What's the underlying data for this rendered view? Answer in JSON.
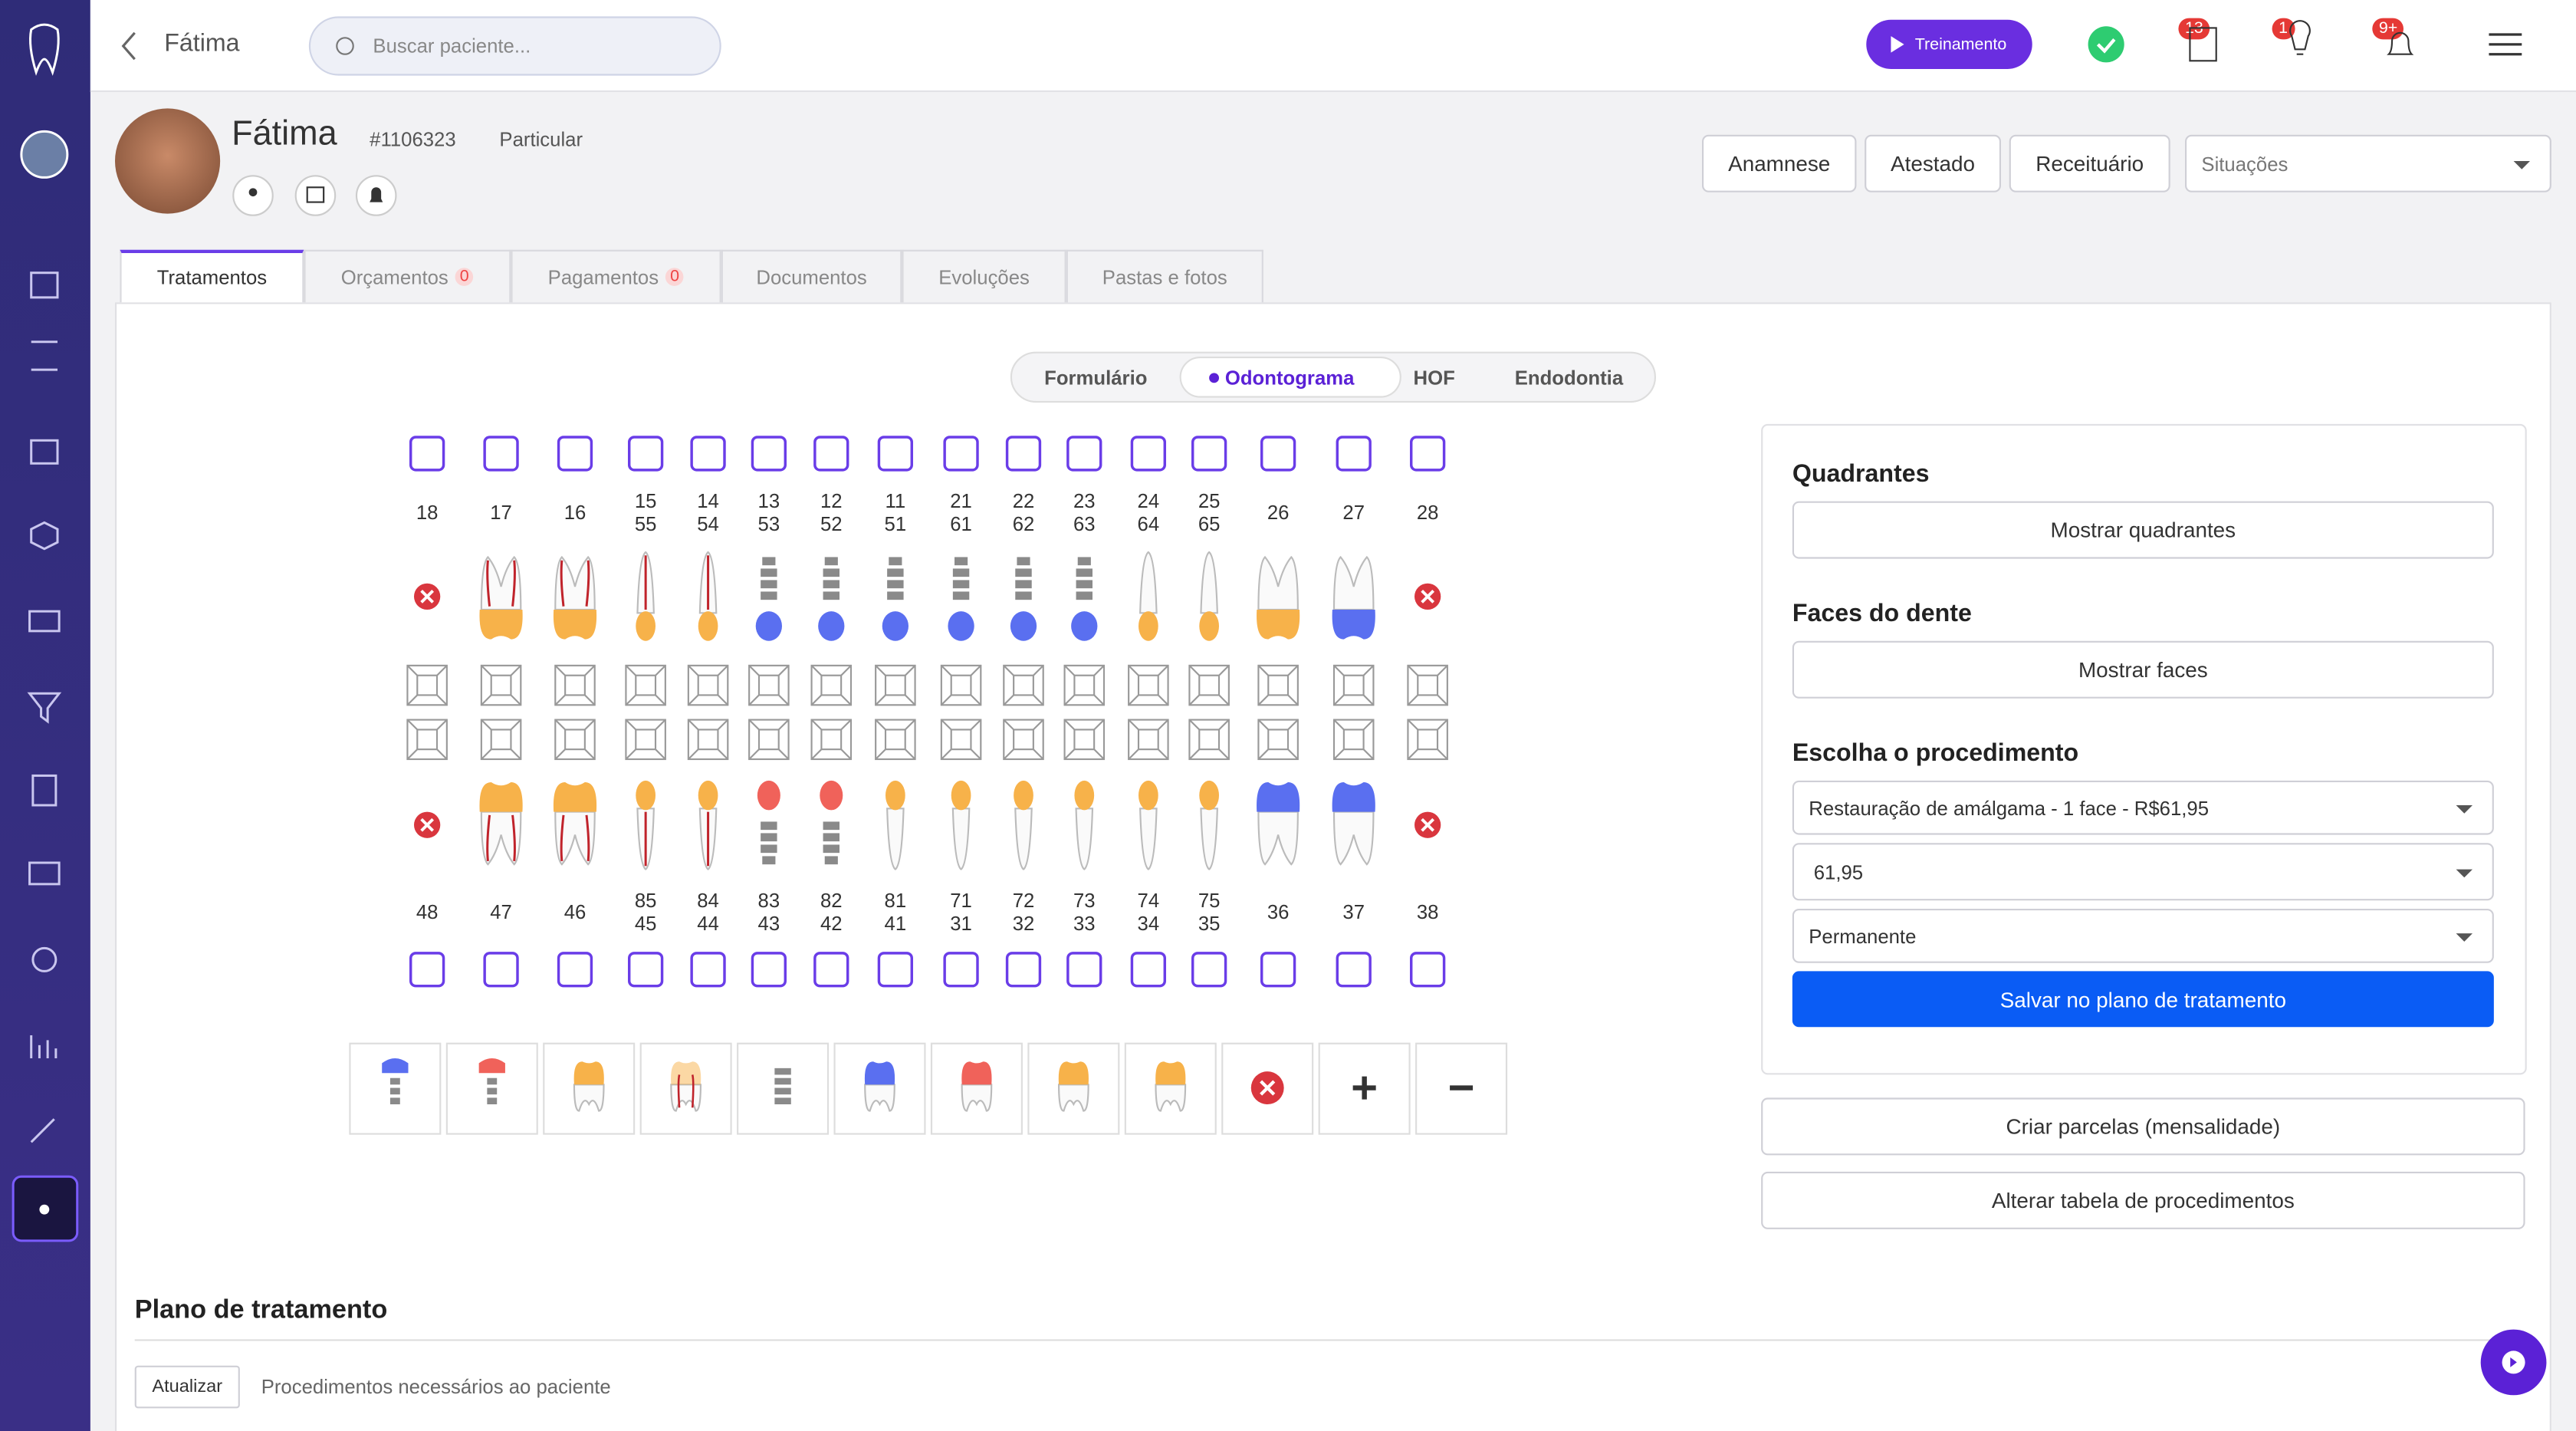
{
  "header": {
    "back_label": "Fátima",
    "search_placeholder": "Buscar paciente...",
    "training": "Treinamento",
    "badges": [
      "13",
      "1",
      "9+"
    ]
  },
  "patient": {
    "name": "Fátima",
    "id": "#1106323",
    "plan": "Particular"
  },
  "actions": [
    "Anamnese",
    "Atestado",
    "Receituário"
  ],
  "situations": "Situações",
  "tabs": [
    {
      "label": "Tratamentos"
    },
    {
      "label": "Orçamentos",
      "badge": "0"
    },
    {
      "label": "Pagamentos",
      "badge": "0"
    },
    {
      "label": "Documentos"
    },
    {
      "label": "Evoluções"
    },
    {
      "label": "Pastas e fotos"
    }
  ],
  "subtabs": [
    "Formulário",
    "Odontograma",
    "HOF",
    "Endodontia"
  ],
  "odontogram": {
    "upper": [
      [
        "18"
      ],
      [
        "17"
      ],
      [
        "16"
      ],
      [
        "15",
        "55"
      ],
      [
        "14",
        "54"
      ],
      [
        "13",
        "53"
      ],
      [
        "12",
        "52"
      ],
      [
        "11",
        "51"
      ],
      [
        "21",
        "61"
      ],
      [
        "22",
        "62"
      ],
      [
        "23",
        "63"
      ],
      [
        "24",
        "64"
      ],
      [
        "25",
        "65"
      ],
      [
        "26"
      ],
      [
        "27"
      ],
      [
        "28"
      ]
    ],
    "lower": [
      [
        "48"
      ],
      [
        "47"
      ],
      [
        "46"
      ],
      [
        "85",
        "45"
      ],
      [
        "84",
        "44"
      ],
      [
        "83",
        "43"
      ],
      [
        "82",
        "42"
      ],
      [
        "81",
        "41"
      ],
      [
        "71",
        "31"
      ],
      [
        "72",
        "32"
      ],
      [
        "73",
        "33"
      ],
      [
        "74",
        "34"
      ],
      [
        "75",
        "35"
      ],
      [
        "36"
      ],
      [
        "37"
      ],
      [
        "38"
      ]
    ]
  },
  "panel": {
    "quadrants_title": "Quadrantes",
    "quadrants_button": "Mostrar quadrantes",
    "faces_title": "Faces do dente",
    "faces_button": "Mostrar faces",
    "procedure_title": "Escolha o procedimento",
    "procedure": "Restauração de amálgama - 1 face - R$61,95",
    "price": "61,95",
    "dentition": "Permanente",
    "save": "Salvar no plano de tratamento",
    "installments": "Criar parcelas (mensalidade)",
    "table": "Alterar tabela de procedimentos"
  },
  "plan": {
    "title": "Plano de tratamento",
    "refresh": "Atualizar",
    "description": "Procedimentos necessários ao paciente"
  }
}
